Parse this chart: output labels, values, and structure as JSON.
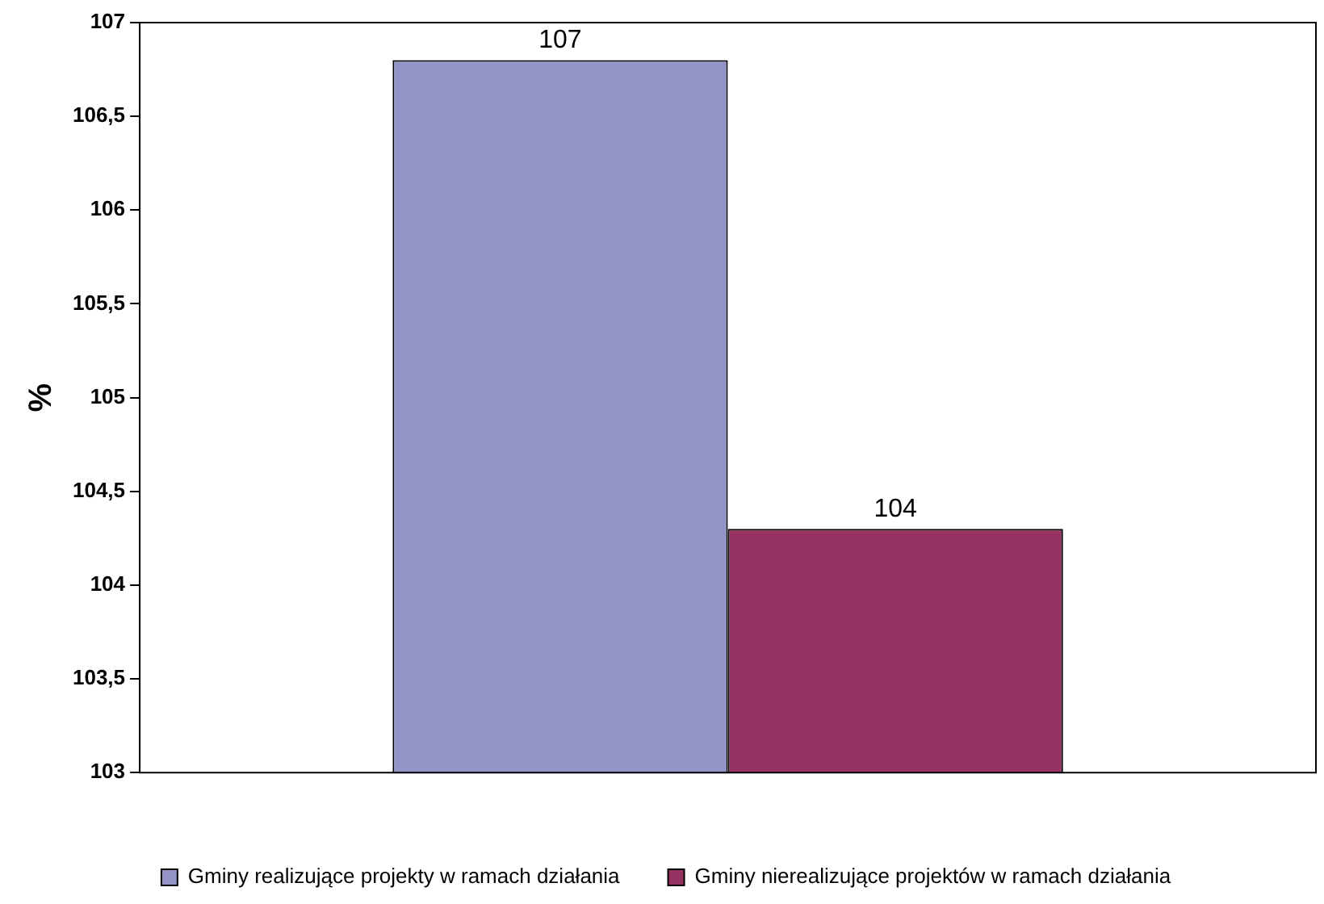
{
  "chart_data": {
    "type": "bar",
    "ylabel": "%",
    "categories": [
      null
    ],
    "series": [
      {
        "name": "Gminy realizujące projekty w ramach działania",
        "color": "#9393c8",
        "values": [
          106.8
        ],
        "value_labels": [
          "107"
        ]
      },
      {
        "name": "Gminy nierealizujące projektów w ramach działania",
        "color": "#953262",
        "values": [
          104.3
        ],
        "value_labels": [
          "104"
        ]
      }
    ],
    "ylim": [
      103,
      107
    ],
    "yticks": [
      103,
      {
        "value": 103.5,
        "label": "103,5"
      },
      104,
      {
        "value": 104.5,
        "label": "104,5"
      },
      105,
      {
        "value": 105.5,
        "label": "105,5"
      },
      106,
      {
        "value": 106.5,
        "label": "106,5"
      },
      107
    ],
    "legend": "bottom"
  }
}
